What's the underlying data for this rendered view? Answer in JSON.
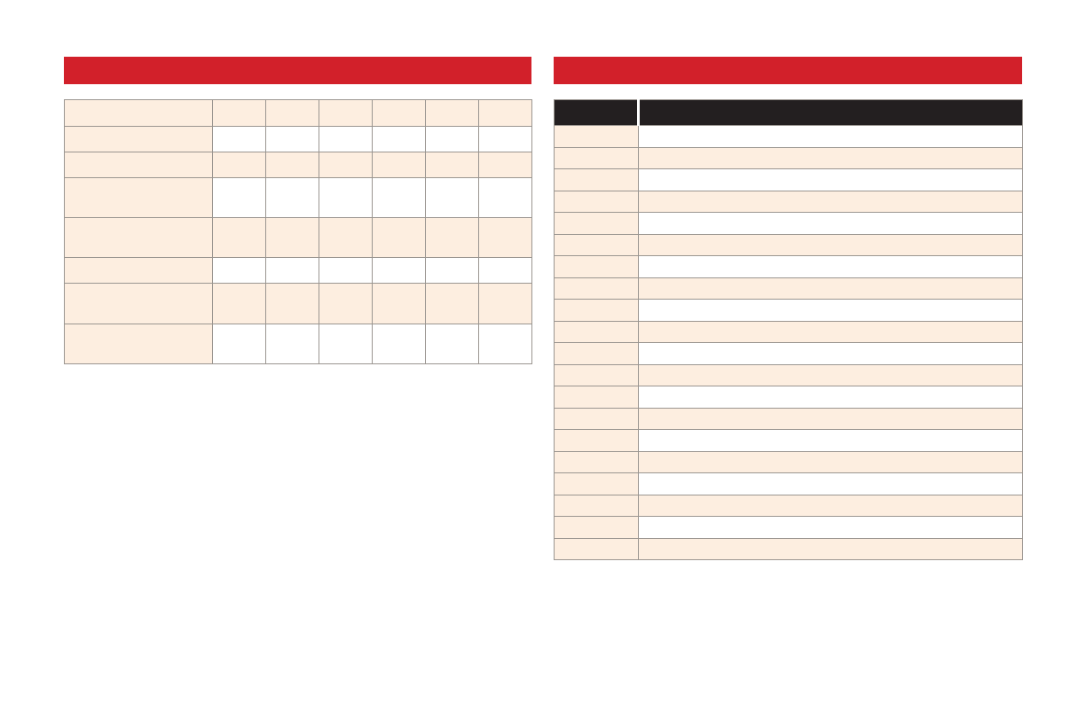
{
  "colors": {
    "header_bar": "#d2202a",
    "shade": "#fdeee0",
    "dark_header": "#231f20",
    "border": "#9a9590"
  },
  "left_panel": {
    "title": "",
    "rows": [
      [
        "",
        "",
        "",
        "",
        "",
        "",
        ""
      ],
      [
        "",
        "",
        "",
        "",
        "",
        "",
        ""
      ],
      [
        "",
        "",
        "",
        "",
        "",
        "",
        ""
      ],
      [
        "",
        "",
        "",
        "",
        "",
        "",
        ""
      ],
      [
        "",
        "",
        "",
        "",
        "",
        "",
        ""
      ],
      [
        "",
        "",
        "",
        "",
        "",
        "",
        ""
      ],
      [
        "",
        "",
        "",
        "",
        "",
        "",
        ""
      ],
      [
        "",
        "",
        "",
        "",
        "",
        "",
        ""
      ]
    ]
  },
  "right_panel": {
    "title": "",
    "headers": [
      "",
      ""
    ],
    "rows": [
      [
        "",
        ""
      ],
      [
        "",
        ""
      ],
      [
        "",
        ""
      ],
      [
        "",
        ""
      ],
      [
        "",
        ""
      ],
      [
        "",
        ""
      ],
      [
        "",
        ""
      ],
      [
        "",
        ""
      ],
      [
        "",
        ""
      ],
      [
        "",
        ""
      ],
      [
        "",
        ""
      ],
      [
        "",
        ""
      ],
      [
        "",
        ""
      ],
      [
        "",
        ""
      ],
      [
        "",
        ""
      ],
      [
        "",
        ""
      ],
      [
        "",
        ""
      ],
      [
        "",
        ""
      ],
      [
        "",
        ""
      ],
      [
        "",
        ""
      ]
    ]
  }
}
